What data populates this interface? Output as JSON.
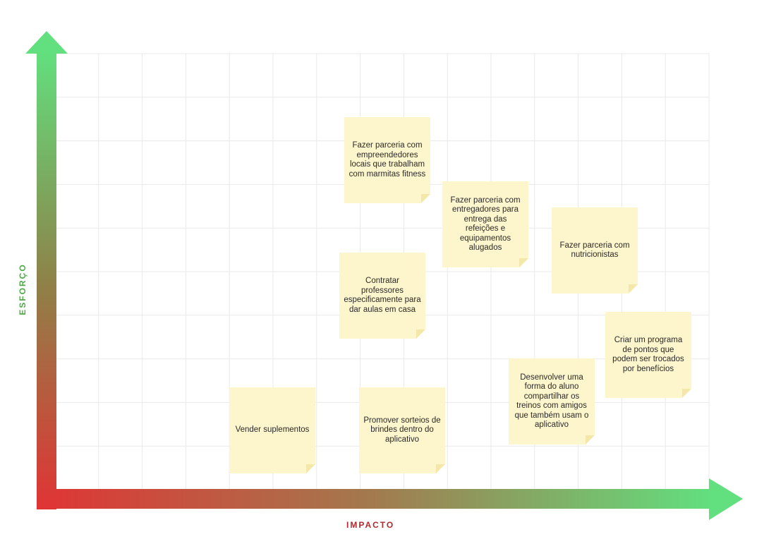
{
  "axes": {
    "x_label": "IMPACTO",
    "y_label": "ESFORÇO",
    "x_color": "#b02a2e",
    "y_color": "#4cab45",
    "gradient_start": "#e03434",
    "gradient_end": "#62df7e"
  },
  "notes": [
    {
      "id": "marmitas",
      "text": "Fazer parceria com empreendedores locais que trabalham com marmitas fitness"
    },
    {
      "id": "entregadores",
      "text": "Fazer parceria com entregadores para entrega das refeições e equipamentos alugados"
    },
    {
      "id": "nutricionistas",
      "text": "Fazer parceria com nutricionistas"
    },
    {
      "id": "professores",
      "text": "Contratar professores especificamente para dar aulas em casa"
    },
    {
      "id": "pontos",
      "text": "Criar um programa de pontos que podem ser trocados por benefícios"
    },
    {
      "id": "compartilhar",
      "text": "Desenvolver uma forma do aluno compartilhar os treinos com amigos que também usam o aplicativo"
    },
    {
      "id": "suplementos",
      "text": "Vender suplementos"
    },
    {
      "id": "sorteios",
      "text": "Promover sorteios de brindes dentro do aplicativo"
    }
  ]
}
